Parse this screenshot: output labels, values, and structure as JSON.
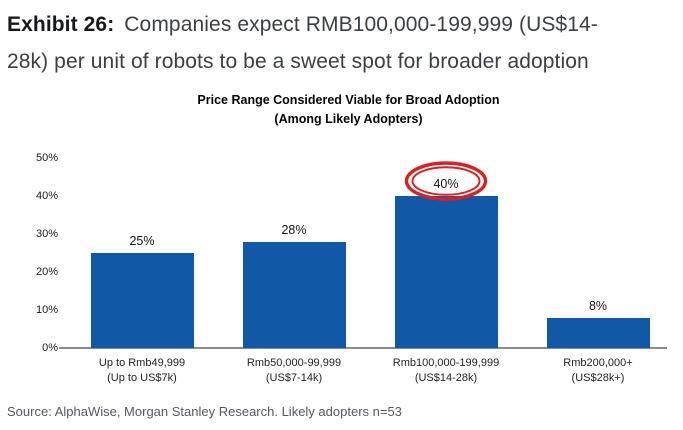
{
  "exhibit": {
    "label": "Exhibit 26:",
    "title_line1": "Companies expect RMB100,000-199,999 (US$14-",
    "title_line2": "28k) per unit of robots to be a sweet spot for broader adoption"
  },
  "chart_data": {
    "type": "bar",
    "title": "Price Range Considered Viable for Broad Adoption",
    "subtitle": "(Among Likely Adopters)",
    "categories": [
      {
        "line1": "Up to Rmb49,999",
        "line2": "(Up to US$7k)"
      },
      {
        "line1": "Rmb50,000-99,999",
        "line2": "(US$7-14k)"
      },
      {
        "line1": "Rmb100,000-199,999",
        "line2": "(US$14-28k)"
      },
      {
        "line1": "Rmb200,000+",
        "line2": "(US$28k+)"
      }
    ],
    "values": [
      25,
      28,
      40,
      8
    ],
    "value_labels": [
      "25%",
      "28%",
      "40%",
      "8%"
    ],
    "ylim": [
      0,
      50
    ],
    "ytick_step": 10,
    "ytick_labels": [
      "0%",
      "10%",
      "20%",
      "30%",
      "40%",
      "50%"
    ],
    "grid": false,
    "legend": null,
    "bar_color": "#1159A6",
    "axis_line_color": "#8A8A8A",
    "annotation": {
      "shape": "double-ellipse",
      "target_index": 2,
      "target_label": "40%",
      "color": "#D92121"
    }
  },
  "source": "Source: AlphaWise, Morgan Stanley Research. Likely adopters n=53"
}
